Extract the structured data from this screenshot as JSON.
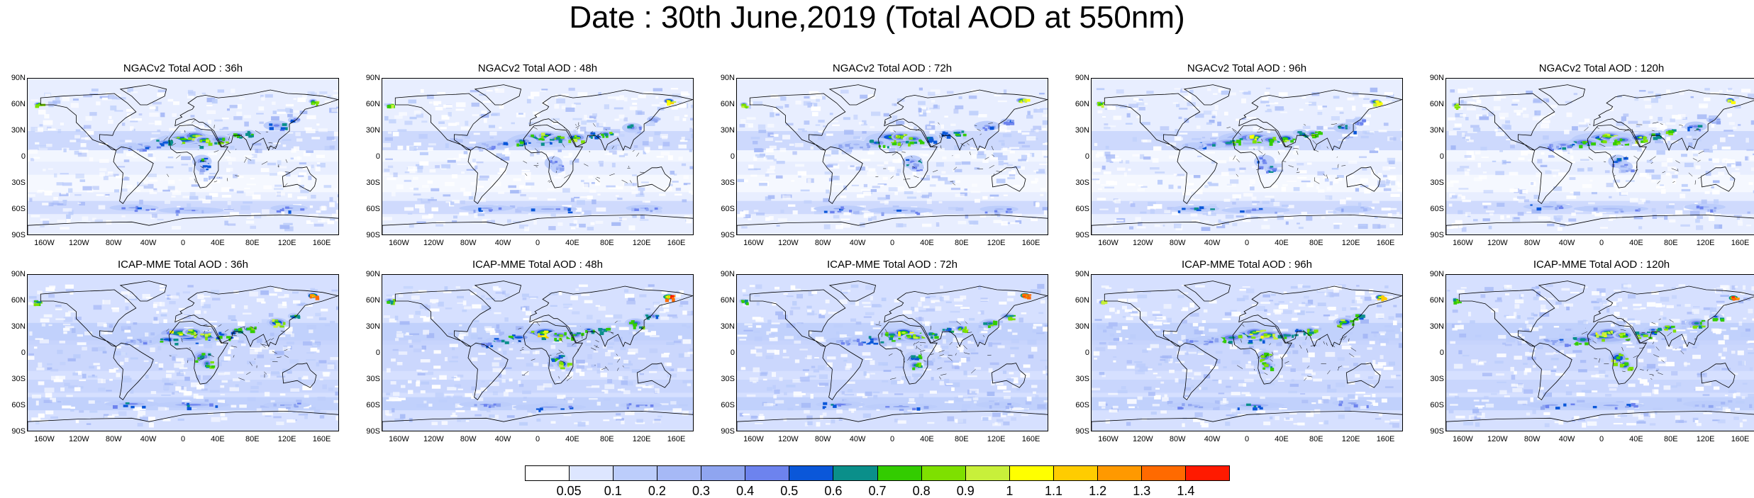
{
  "title": "Date : 30th June,2019 (Total AOD at 550nm)",
  "latitude_labels": [
    "90N",
    "60N",
    "30N",
    "0",
    "30S",
    "60S",
    "90S"
  ],
  "longitude_labels": [
    "160W",
    "120W",
    "80W",
    "40W",
    "0",
    "40E",
    "80E",
    "120E",
    "160E"
  ],
  "panels": [
    {
      "title": "NGACv2 Total AOD : 36h",
      "model": "NGACv2",
      "lead": "36h",
      "row": 0,
      "col": 0
    },
    {
      "title": "NGACv2 Total AOD : 48h",
      "model": "NGACv2",
      "lead": "48h",
      "row": 0,
      "col": 1
    },
    {
      "title": "NGACv2 Total AOD : 72h",
      "model": "NGACv2",
      "lead": "72h",
      "row": 0,
      "col": 2
    },
    {
      "title": "NGACv2 Total AOD : 96h",
      "model": "NGACv2",
      "lead": "96h",
      "row": 0,
      "col": 3
    },
    {
      "title": "NGACv2 Total AOD : 120h",
      "model": "NGACv2",
      "lead": "120h",
      "row": 0,
      "col": 4
    },
    {
      "title": "ICAP-MME Total AOD : 36h",
      "model": "ICAP-MME",
      "lead": "36h",
      "row": 1,
      "col": 0
    },
    {
      "title": "ICAP-MME Total AOD : 48h",
      "model": "ICAP-MME",
      "lead": "48h",
      "row": 1,
      "col": 1
    },
    {
      "title": "ICAP-MME Total AOD : 72h",
      "model": "ICAP-MME",
      "lead": "72h",
      "row": 1,
      "col": 2
    },
    {
      "title": "ICAP-MME Total AOD : 96h",
      "model": "ICAP-MME",
      "lead": "96h",
      "row": 1,
      "col": 3
    },
    {
      "title": "ICAP-MME Total AOD : 120h",
      "model": "ICAP-MME",
      "lead": "120h",
      "row": 1,
      "col": 4
    }
  ],
  "colorbar": {
    "labels": [
      "0.05",
      "0.1",
      "0.2",
      "0.3",
      "0.4",
      "0.5",
      "0.6",
      "0.7",
      "0.8",
      "0.9",
      "1",
      "1.1",
      "1.2",
      "1.3",
      "1.4"
    ],
    "colors": [
      "#ffffff",
      "#dde6ff",
      "#bccdfb",
      "#a6b9f6",
      "#8fa5f0",
      "#6d83ee",
      "#0a57d9",
      "#0a8f8a",
      "#33cc00",
      "#7ee000",
      "#c8f03a",
      "#ffff00",
      "#ffcc00",
      "#ff9900",
      "#ff6a00",
      "#ff1a00"
    ]
  }
}
